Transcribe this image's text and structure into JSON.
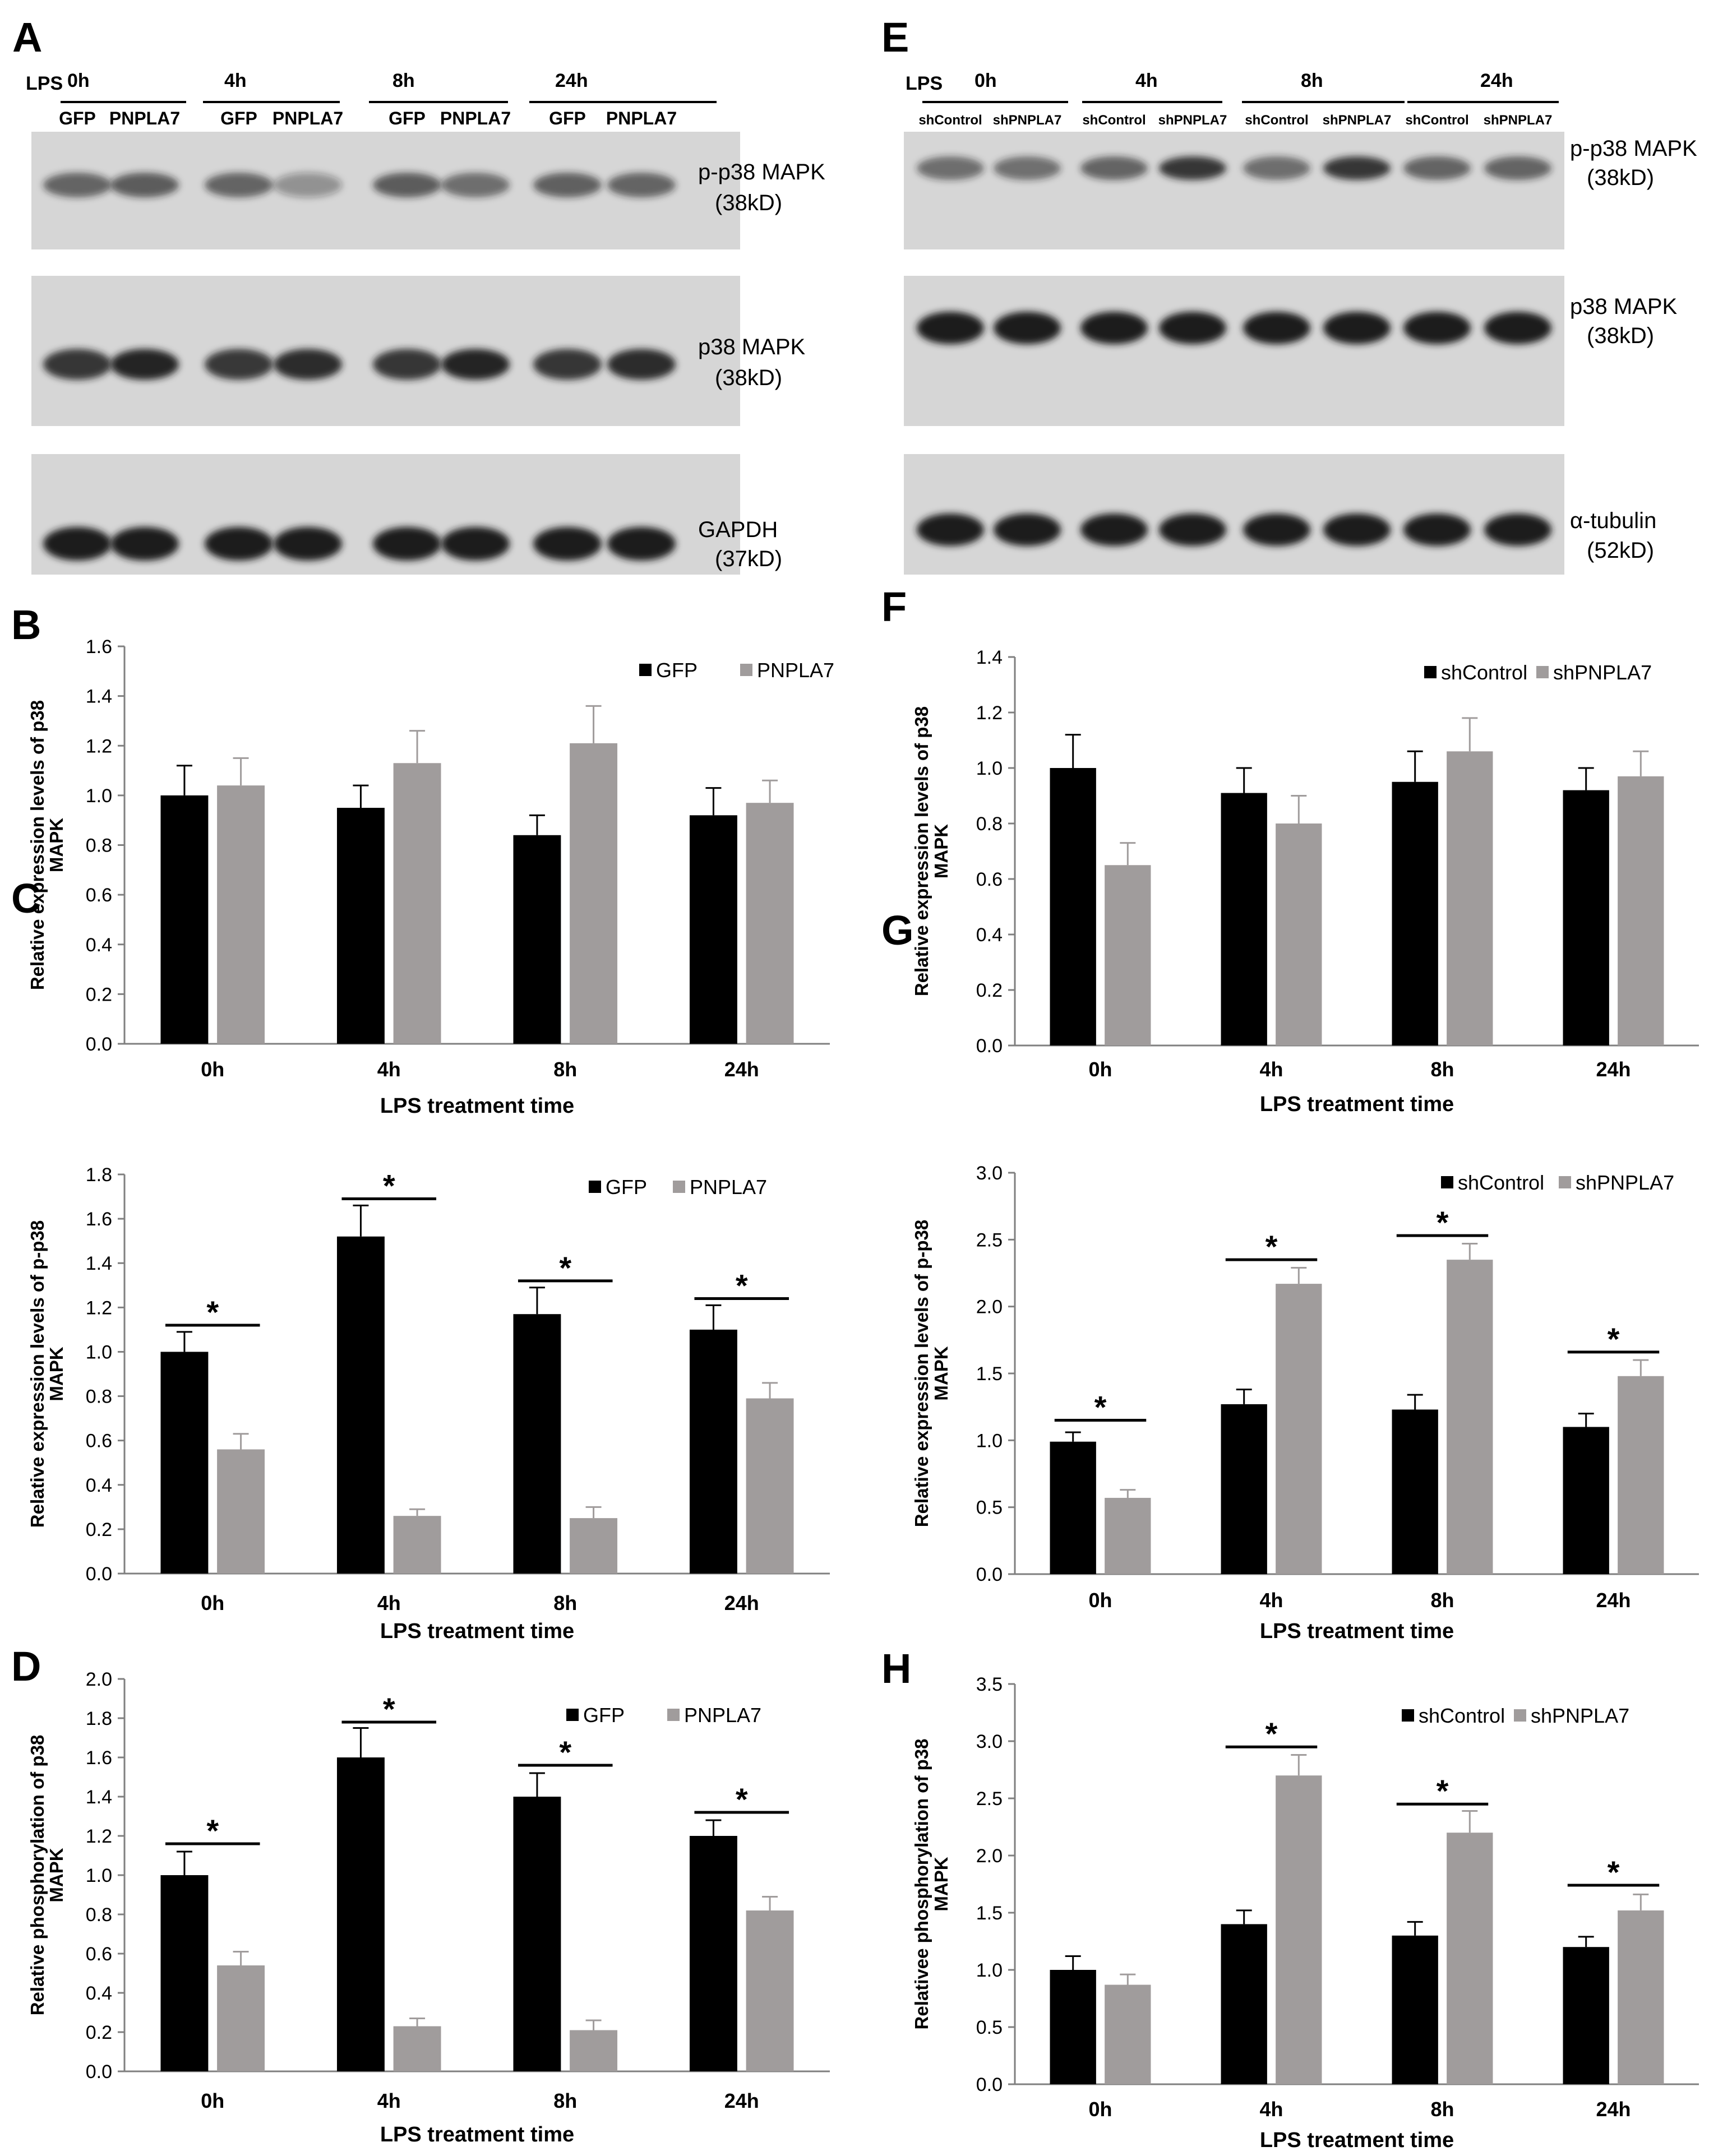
{
  "blots": [
    {
      "panel_letter": "A",
      "treatment_label": "LPS",
      "time_groups": [
        "0h",
        "4h",
        "8h",
        "24h"
      ],
      "lane_labels": [
        "GFP",
        "PNPLA7",
        "GFP",
        "PNPLA7",
        "GFP",
        "PNPLA7",
        "GFP",
        "PNPLA7"
      ],
      "rows": [
        {
          "label": "p-p38 MAPK",
          "size": "(38kD)"
        },
        {
          "label": "p38 MAPK",
          "size": "(38kD)"
        },
        {
          "label": "GAPDH",
          "size": "(37kD)"
        }
      ]
    },
    {
      "panel_letter": "E",
      "treatment_label": "LPS",
      "time_groups": [
        "0h",
        "4h",
        "8h",
        "24h"
      ],
      "lane_labels": [
        "shControl",
        "shPNPLA7",
        "shControl",
        "shPNPLA7",
        "shControl",
        "shPNPLA7",
        "shControl",
        "shPNPLA7"
      ],
      "rows": [
        {
          "label": "p-p38 MAPK",
          "size": "(38kD)"
        },
        {
          "label": "p38 MAPK",
          "size": "(38kD)"
        },
        {
          "label": "α-tubulin",
          "size": "(52kD)"
        }
      ]
    }
  ],
  "chart_data": [
    {
      "panel_letter": "B",
      "type": "bar",
      "categories": [
        "0h",
        "4h",
        "8h",
        "24h"
      ],
      "series": [
        {
          "name": "GFP",
          "values": [
            1.0,
            0.95,
            0.84,
            0.92
          ],
          "errors": [
            0.12,
            0.09,
            0.08,
            0.11
          ]
        },
        {
          "name": "PNPLA7",
          "values": [
            1.04,
            1.13,
            1.21,
            0.97
          ],
          "errors": [
            0.11,
            0.13,
            0.15,
            0.09
          ]
        }
      ],
      "ylabel": [
        "Relative expression levels of p38",
        "MAPK"
      ],
      "xlabel": "LPS treatment time",
      "ylim": [
        0,
        1.6
      ],
      "ytick_step": 0.2,
      "yticks": [
        "0.0",
        "0.2",
        "0.4",
        "0.6",
        "0.8",
        "1.0",
        "1.2",
        "1.4",
        "1.6"
      ],
      "significance": [],
      "legend": "top-right"
    },
    {
      "panel_letter": "C",
      "type": "bar",
      "categories": [
        "0h",
        "4h",
        "8h",
        "24h"
      ],
      "series": [
        {
          "name": "GFP",
          "values": [
            1.0,
            1.52,
            1.17,
            1.1
          ],
          "errors": [
            0.09,
            0.14,
            0.12,
            0.11
          ]
        },
        {
          "name": "PNPLA7",
          "values": [
            0.56,
            0.26,
            0.25,
            0.79
          ],
          "errors": [
            0.07,
            0.03,
            0.05,
            0.07
          ]
        }
      ],
      "ylabel": [
        "Relative expression levels of p-p38",
        "MAPK"
      ],
      "xlabel": "LPS treatment time",
      "ylim": [
        0,
        1.8
      ],
      "ytick_step": 0.2,
      "yticks": [
        "0.0",
        "0.2",
        "0.4",
        "0.6",
        "0.8",
        "1.0",
        "1.2",
        "1.4",
        "1.6",
        "1.8"
      ],
      "significance": [
        {
          "category": "0h",
          "marker": "*",
          "line_y": 1.12
        },
        {
          "category": "4h",
          "marker": "*",
          "line_y": 1.69
        },
        {
          "category": "8h",
          "marker": "*",
          "line_y": 1.32
        },
        {
          "category": "24h",
          "marker": "*",
          "line_y": 1.24
        }
      ],
      "legend": "top-right"
    },
    {
      "panel_letter": "D",
      "type": "bar",
      "categories": [
        "0h",
        "4h",
        "8h",
        "24h"
      ],
      "series": [
        {
          "name": "GFP",
          "values": [
            1.0,
            1.6,
            1.4,
            1.2
          ],
          "errors": [
            0.12,
            0.15,
            0.12,
            0.08
          ]
        },
        {
          "name": "PNPLA7",
          "values": [
            0.54,
            0.23,
            0.21,
            0.82
          ],
          "errors": [
            0.07,
            0.04,
            0.05,
            0.07
          ]
        }
      ],
      "ylabel": [
        "Relative phosphorylation of p38",
        "MAPK"
      ],
      "xlabel": "LPS treatment time",
      "ylim": [
        0,
        2.0
      ],
      "ytick_step": 0.2,
      "yticks": [
        "0.0",
        "0.2",
        "0.4",
        "0.6",
        "0.8",
        "1.0",
        "1.2",
        "1.4",
        "1.6",
        "1.8",
        "2.0"
      ],
      "significance": [
        {
          "category": "0h",
          "marker": "*",
          "line_y": 1.16
        },
        {
          "category": "4h",
          "marker": "*",
          "line_y": 1.78
        },
        {
          "category": "8h",
          "marker": "*",
          "line_y": 1.56
        },
        {
          "category": "24h",
          "marker": "*",
          "line_y": 1.32
        }
      ],
      "legend": "top-right"
    },
    {
      "panel_letter": "F",
      "type": "bar",
      "categories": [
        "0h",
        "4h",
        "8h",
        "24h"
      ],
      "series": [
        {
          "name": "shControl",
          "values": [
            1.0,
            0.91,
            0.95,
            0.92
          ],
          "errors": [
            0.12,
            0.09,
            0.11,
            0.08
          ]
        },
        {
          "name": "shPNPLA7",
          "values": [
            0.65,
            0.8,
            1.06,
            0.97
          ],
          "errors": [
            0.08,
            0.1,
            0.12,
            0.09
          ]
        }
      ],
      "ylabel": [
        "Relative expression levels of p38",
        "MAPK"
      ],
      "xlabel": "LPS treatment time",
      "ylim": [
        0,
        1.4
      ],
      "ytick_step": 0.2,
      "yticks": [
        "0.0",
        "0.2",
        "0.4",
        "0.6",
        "0.8",
        "1.0",
        "1.2",
        "1.4"
      ],
      "significance": [],
      "legend": "top-right"
    },
    {
      "panel_letter": "G",
      "type": "bar",
      "categories": [
        "0h",
        "4h",
        "8h",
        "24h"
      ],
      "series": [
        {
          "name": "shControl",
          "values": [
            0.99,
            1.27,
            1.23,
            1.1
          ],
          "errors": [
            0.07,
            0.11,
            0.11,
            0.1
          ]
        },
        {
          "name": "shPNPLA7",
          "values": [
            0.57,
            2.17,
            2.35,
            1.48
          ],
          "errors": [
            0.06,
            0.12,
            0.12,
            0.12
          ]
        }
      ],
      "ylabel": [
        "Relative expression  levels of p-p38",
        "MAPK"
      ],
      "xlabel": "LPS treatment time",
      "ylim": [
        0,
        3.0
      ],
      "ytick_step": 0.5,
      "yticks": [
        "0.0",
        "0.5",
        "1.0",
        "1.5",
        "2.0",
        "2.5",
        "3.0"
      ],
      "significance": [
        {
          "category": "0h",
          "marker": "*",
          "line_y": 1.15
        },
        {
          "category": "4h",
          "marker": "*",
          "line_y": 2.35
        },
        {
          "category": "8h",
          "marker": "*",
          "line_y": 2.53
        },
        {
          "category": "24h",
          "marker": "*",
          "line_y": 1.66
        }
      ],
      "legend": "top-right"
    },
    {
      "panel_letter": "H",
      "type": "bar",
      "categories": [
        "0h",
        "4h",
        "8h",
        "24h"
      ],
      "series": [
        {
          "name": "shControl",
          "values": [
            1.0,
            1.4,
            1.3,
            1.2
          ],
          "errors": [
            0.12,
            0.12,
            0.12,
            0.09
          ]
        },
        {
          "name": "shPNPLA7",
          "values": [
            0.87,
            2.7,
            2.2,
            1.52
          ],
          "errors": [
            0.09,
            0.18,
            0.19,
            0.14
          ]
        }
      ],
      "ylabel": [
        "Relativee phosphorylation of p38",
        "MAPK"
      ],
      "xlabel": "LPS treatment time",
      "ylim": [
        0,
        3.5
      ],
      "ytick_step": 0.5,
      "yticks": [
        "0.0",
        "0.5",
        "1.0",
        "1.5",
        "2.0",
        "2.5",
        "3.0",
        "3.5"
      ],
      "significance": [
        {
          "category": "4h",
          "marker": "*",
          "line_y": 2.95
        },
        {
          "category": "8h",
          "marker": "*",
          "line_y": 2.45
        },
        {
          "category": "24h",
          "marker": "*",
          "line_y": 1.74
        }
      ],
      "legend": "top-right"
    }
  ],
  "colors": {
    "series1": "#000000",
    "series2": "#a09c9c",
    "blot_bg": "#d6d6d6",
    "band": "#1c1c1c"
  }
}
